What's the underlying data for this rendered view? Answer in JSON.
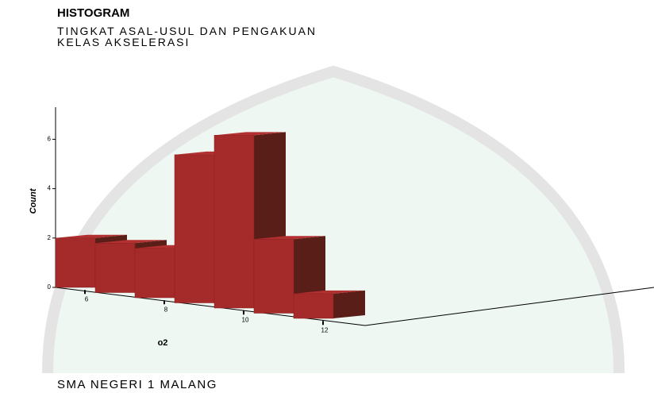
{
  "chart_data": {
    "type": "histogram",
    "title": "HISTOGRAM",
    "subtitle": "TINGKAT ASAL-USUL DAN PENGAKUAN KELAS AKSELERASI",
    "x_label": "o2",
    "y_label": "Count",
    "footer": "SMA NEGERI 1 MALANG",
    "bins": [
      5.5,
      6.5,
      7.5,
      8.5,
      9.5,
      10.5,
      11.5,
      12.5
    ],
    "values": [
      2,
      2,
      2,
      6,
      7,
      3,
      1
    ],
    "color": "#a52a2a",
    "xlim": [
      5.5,
      12.5
    ],
    "xticks": [
      6,
      8,
      10,
      12
    ],
    "ylim": [
      0,
      7.3
    ],
    "yticks": [
      0,
      2,
      4,
      6
    ]
  }
}
